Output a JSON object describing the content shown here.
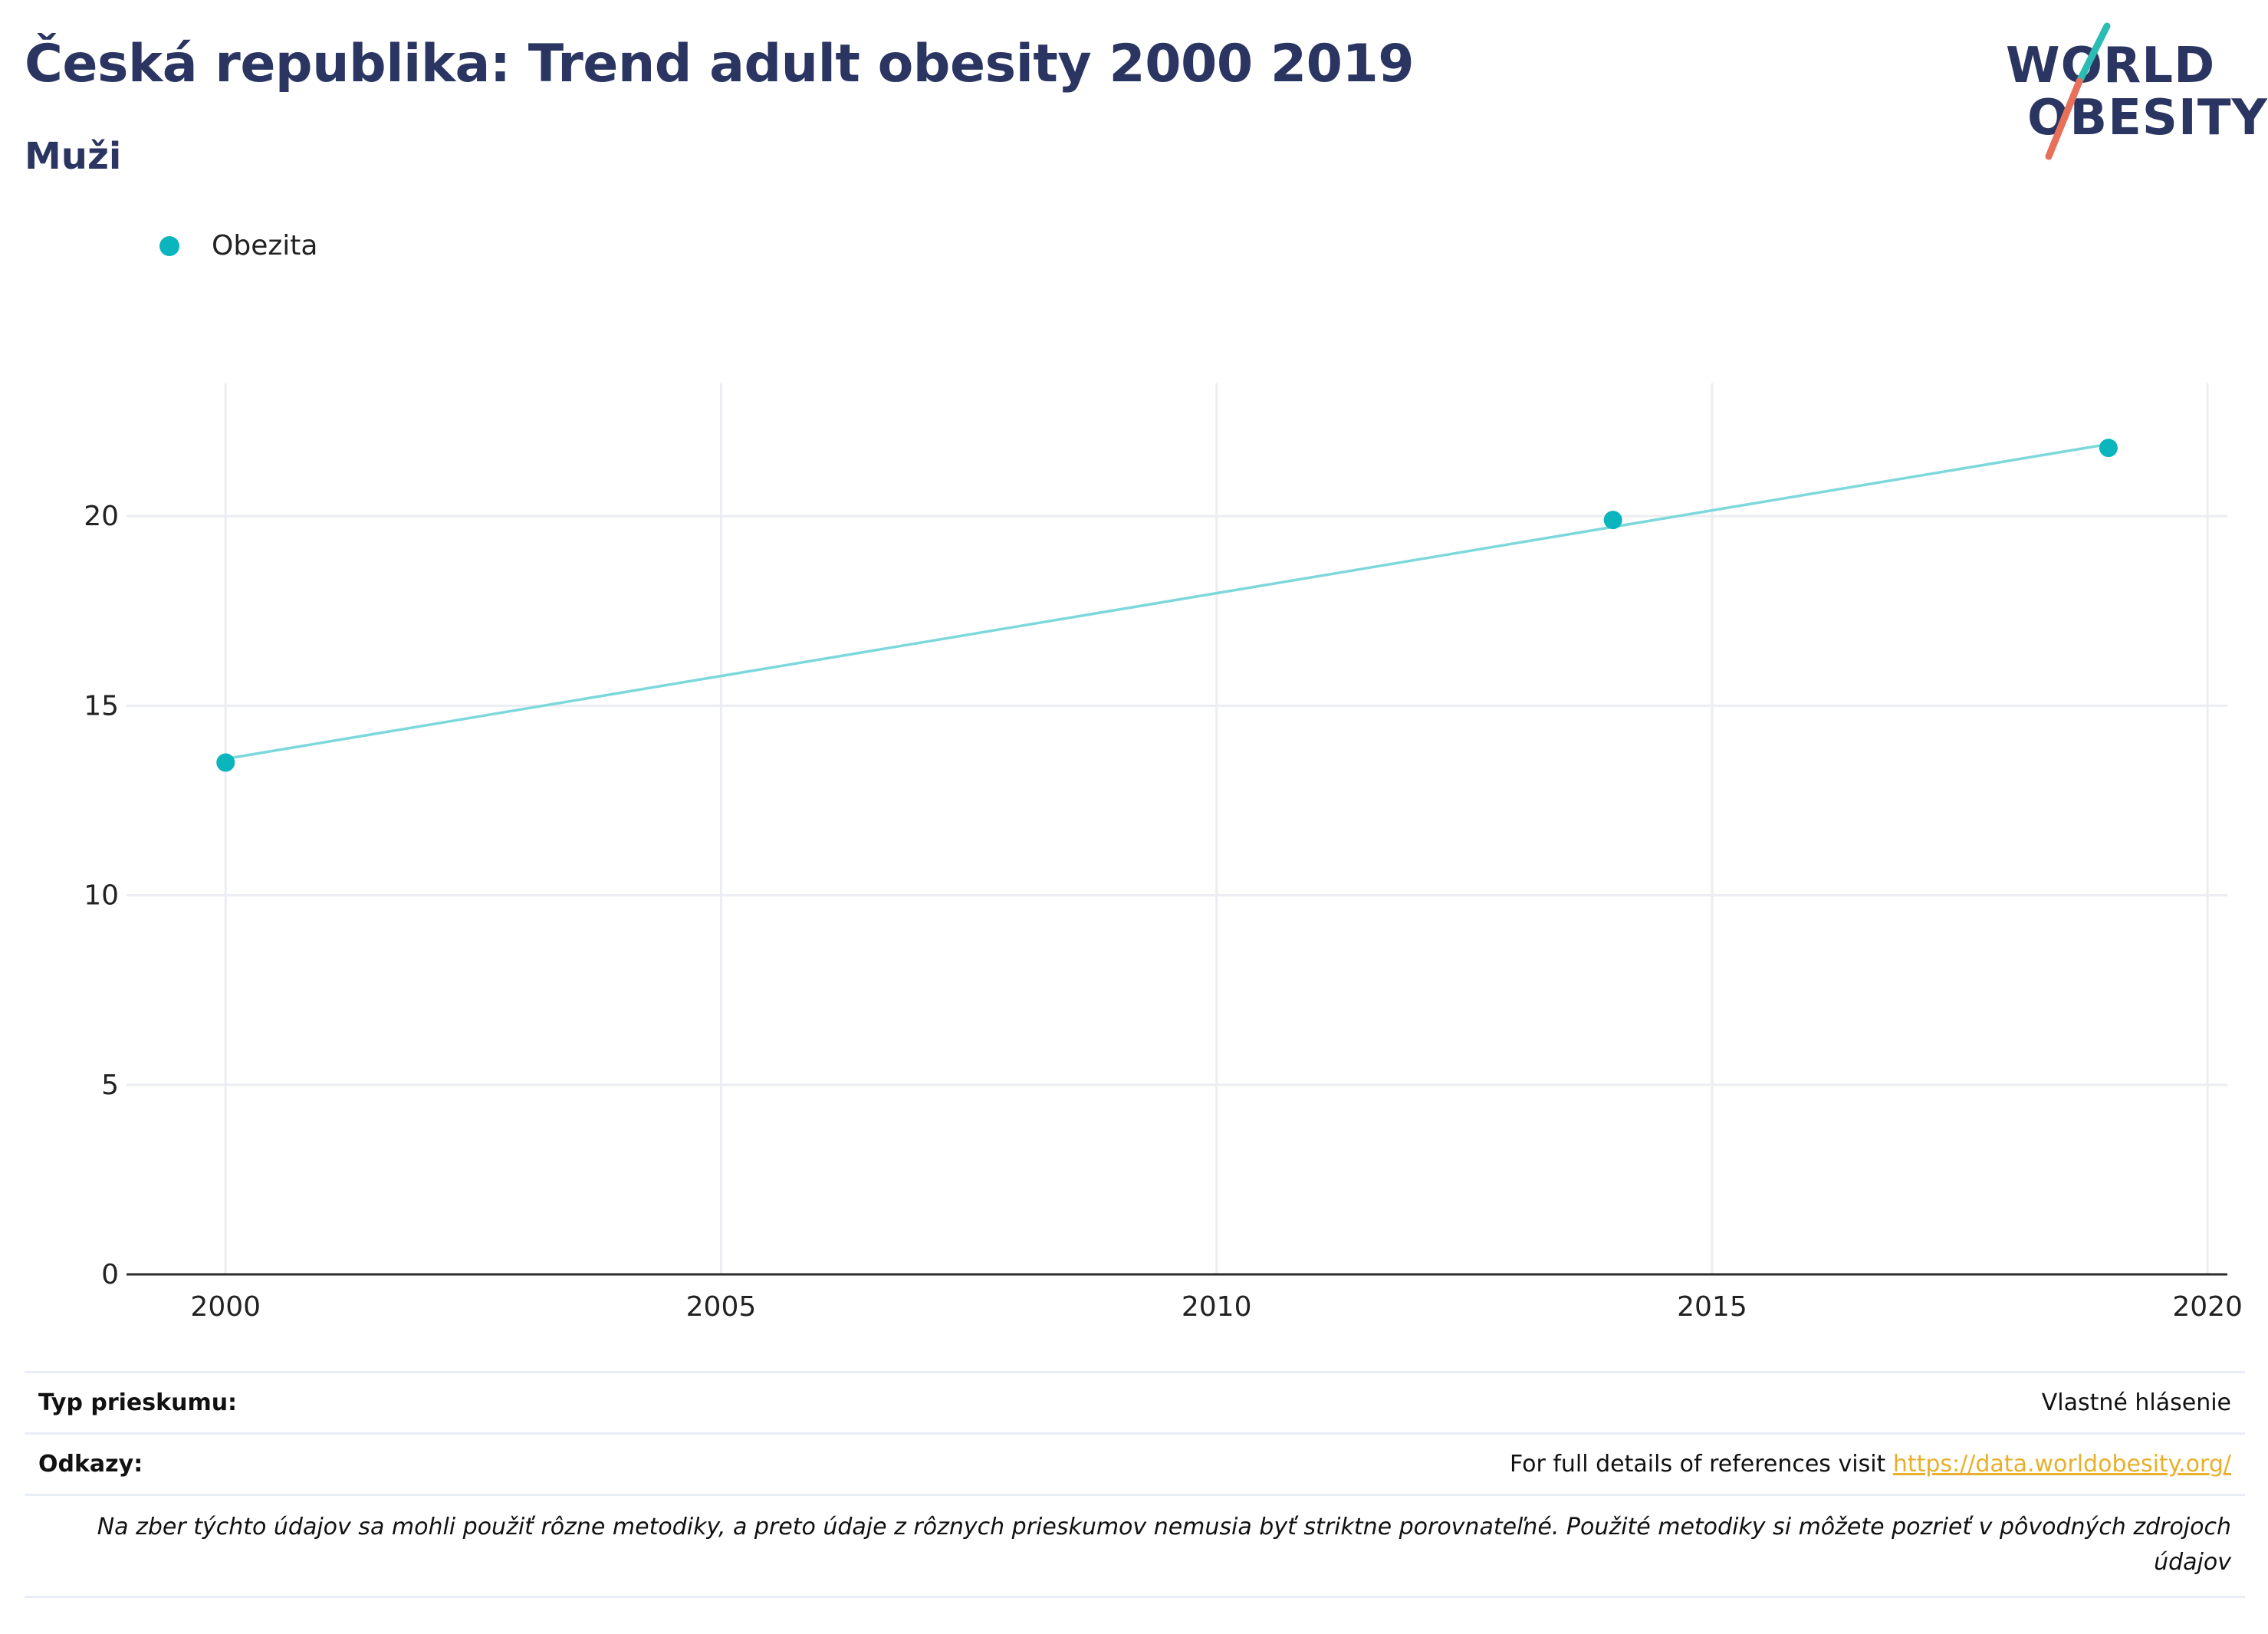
{
  "header": {
    "title": "Česká republika: Trend adult obesity 2000 2019",
    "subtitle": "Muži"
  },
  "logo": {
    "line1": "WORLD",
    "line2": "OBESITY"
  },
  "colors": {
    "series": "#0ab5bd",
    "line": "#7dd8dc",
    "title": "#2b3562",
    "link": "#e8b02a",
    "logo_teal": "#2bbdb4",
    "logo_coral": "#e8705a"
  },
  "chart_data": {
    "type": "line",
    "title": "Česká republika: Trend adult obesity 2000 2019",
    "subtitle": "Muži",
    "xlabel": "",
    "ylabel": "",
    "xlim": [
      1999,
      2020.2
    ],
    "ylim": [
      0,
      23.3
    ],
    "x_ticks": [
      2000,
      2005,
      2010,
      2015,
      2020
    ],
    "y_ticks": [
      0,
      5,
      10,
      15,
      20
    ],
    "grid": true,
    "legend_position": "top-left",
    "series": [
      {
        "name": "Obezita",
        "points": [
          {
            "x": 2000,
            "y": 13.5
          },
          {
            "x": 2014,
            "y": 19.9
          },
          {
            "x": 2019,
            "y": 21.8
          }
        ],
        "trend": [
          {
            "x": 2000,
            "y": 13.6
          },
          {
            "x": 2019,
            "y": 21.9
          }
        ]
      }
    ]
  },
  "footer": {
    "survey_label": "Typ prieskumu:",
    "survey_value": "Vlastné hlásenie",
    "refs_label": "Odkazy:",
    "refs_text": "For full details of references visit",
    "refs_link": "https://data.worldobesity.org/",
    "note": "Na zber týchto údajov sa mohli použiť rôzne metodiky, a preto údaje z rôznych prieskumov nemusia byť striktne porovnateľné. Použité metodiky si môžete pozrieť v pôvodných zdrojoch údajov"
  }
}
